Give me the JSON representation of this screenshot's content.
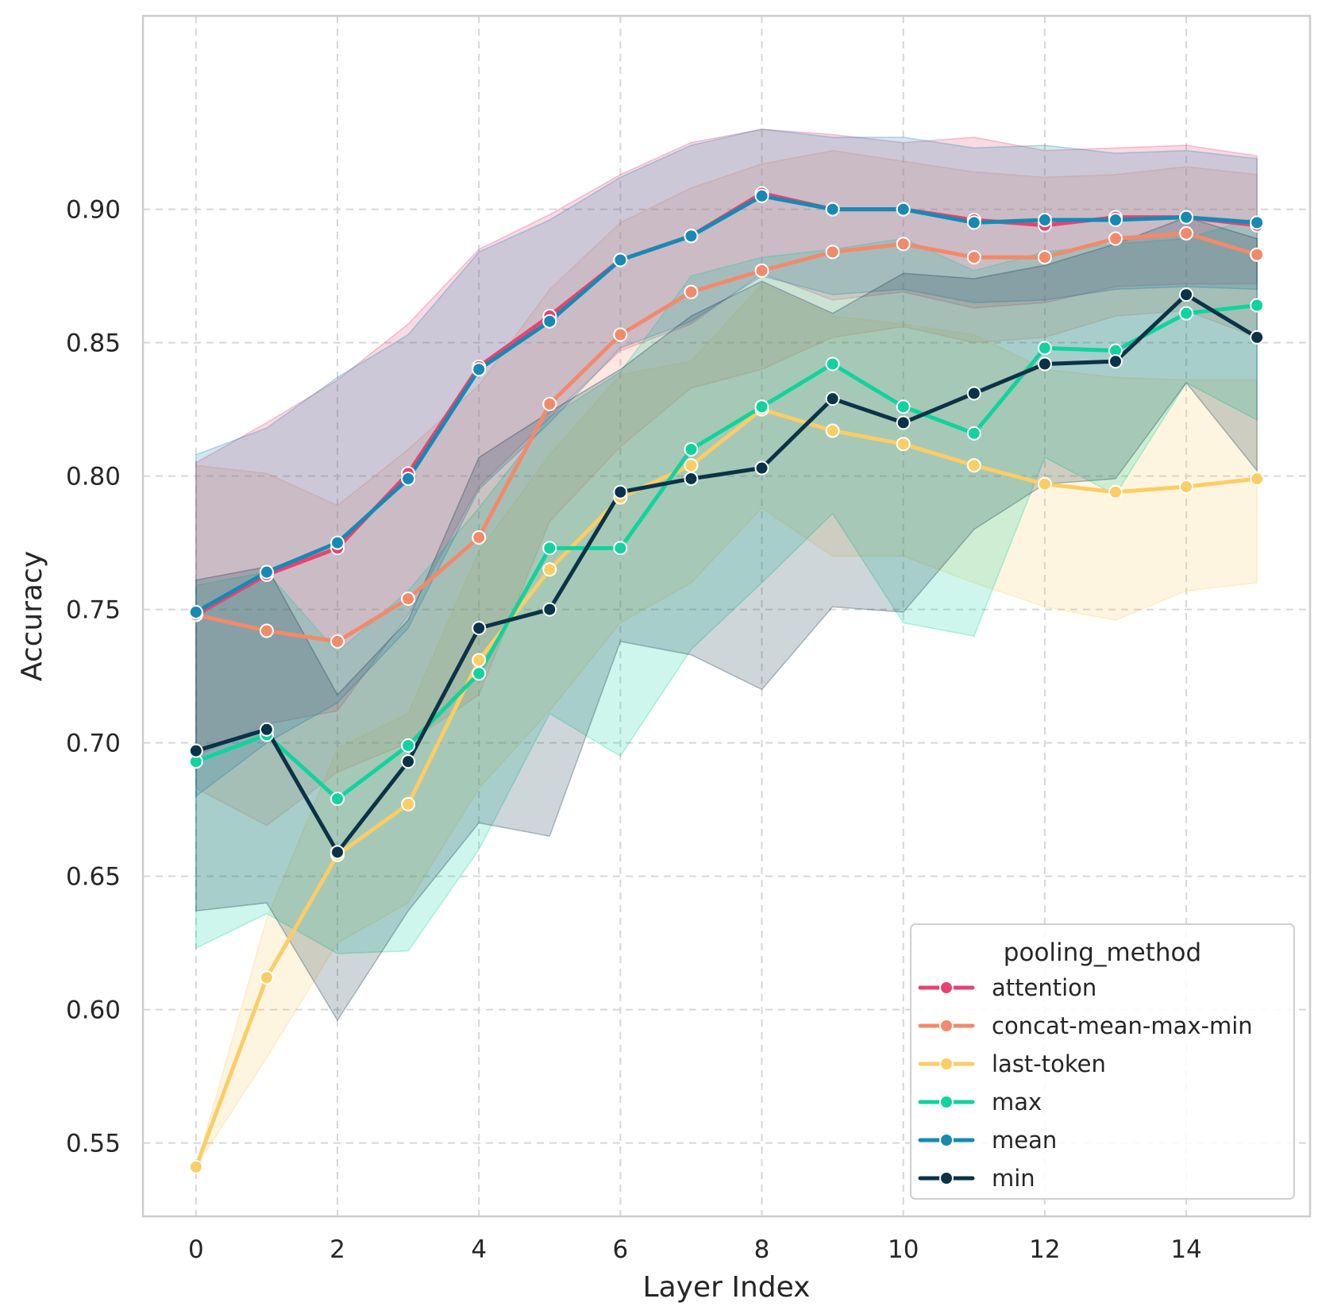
{
  "chart_data": {
    "type": "line",
    "title": "",
    "xlabel": "Layer Index",
    "ylabel": "Accuracy",
    "xlim": [
      -0.75,
      15.75
    ],
    "ylim": [
      0.5225,
      0.9725
    ],
    "xticks": [
      0,
      2,
      4,
      6,
      8,
      10,
      12,
      14
    ],
    "xtick_labels": [
      "0",
      "2",
      "4",
      "6",
      "8",
      "10",
      "12",
      "14"
    ],
    "yticks": [
      0.55,
      0.6,
      0.65,
      0.7,
      0.75,
      0.8,
      0.85,
      0.9
    ],
    "ytick_labels": [
      "0.55",
      "0.60",
      "0.65",
      "0.70",
      "0.75",
      "0.80",
      "0.85",
      "0.90"
    ],
    "grid": true,
    "legend": {
      "title": "pooling_method",
      "placement": "lower-right"
    },
    "x": [
      0,
      1,
      2,
      3,
      4,
      5,
      6,
      7,
      8,
      9,
      10,
      11,
      12,
      13,
      14,
      15
    ],
    "series": [
      {
        "name": "attention",
        "color": "#e8436f",
        "values": [
          0.748,
          0.763,
          0.773,
          0.801,
          0.841,
          0.86,
          0.881,
          0.89,
          0.906,
          0.9,
          0.9,
          0.896,
          0.894,
          0.897,
          0.897,
          0.894
        ],
        "lower": [
          0.695,
          0.707,
          0.712,
          0.748,
          0.796,
          0.822,
          0.847,
          0.857,
          0.876,
          0.866,
          0.869,
          0.863,
          0.865,
          0.871,
          0.872,
          0.872
        ],
        "upper": [
          0.805,
          0.82,
          0.836,
          0.857,
          0.885,
          0.898,
          0.913,
          0.925,
          0.93,
          0.928,
          0.925,
          0.927,
          0.922,
          0.923,
          0.924,
          0.92
        ]
      },
      {
        "name": "concat-mean-max-min",
        "color": "#f28a6a",
        "values": [
          0.748,
          0.742,
          0.738,
          0.754,
          0.777,
          0.827,
          0.853,
          0.869,
          0.877,
          0.884,
          0.887,
          0.882,
          0.882,
          0.889,
          0.891,
          0.883
        ],
        "lower": [
          0.683,
          0.669,
          0.689,
          0.7,
          0.718,
          0.783,
          0.811,
          0.833,
          0.84,
          0.852,
          0.856,
          0.85,
          0.852,
          0.86,
          0.862,
          0.852
        ],
        "upper": [
          0.804,
          0.801,
          0.789,
          0.81,
          0.834,
          0.87,
          0.895,
          0.908,
          0.917,
          0.922,
          0.918,
          0.914,
          0.912,
          0.913,
          0.916,
          0.913
        ]
      },
      {
        "name": "last-token",
        "color": "#fbcd65",
        "values": [
          0.541,
          0.612,
          0.658,
          0.677,
          0.731,
          0.765,
          0.792,
          0.804,
          0.825,
          0.817,
          0.812,
          0.804,
          0.797,
          0.794,
          0.796,
          0.799
        ],
        "lower": [
          0.541,
          0.582,
          0.625,
          0.64,
          0.683,
          0.712,
          0.745,
          0.76,
          0.788,
          0.77,
          0.77,
          0.76,
          0.751,
          0.746,
          0.757,
          0.76
        ],
        "upper": [
          0.541,
          0.634,
          0.698,
          0.711,
          0.772,
          0.808,
          0.838,
          0.843,
          0.872,
          0.86,
          0.857,
          0.853,
          0.84,
          0.837,
          0.836,
          0.836
        ]
      },
      {
        "name": "max",
        "color": "#11d39e",
        "values": [
          0.693,
          0.703,
          0.679,
          0.699,
          0.726,
          0.773,
          0.773,
          0.81,
          0.826,
          0.842,
          0.826,
          0.816,
          0.848,
          0.847,
          0.861,
          0.864
        ],
        "lower": [
          0.623,
          0.636,
          0.621,
          0.622,
          0.66,
          0.711,
          0.695,
          0.735,
          0.76,
          0.786,
          0.745,
          0.74,
          0.807,
          0.793,
          0.835,
          0.821
        ],
        "upper": [
          0.759,
          0.764,
          0.734,
          0.757,
          0.788,
          0.822,
          0.839,
          0.875,
          0.882,
          0.885,
          0.889,
          0.877,
          0.884,
          0.887,
          0.889,
          0.897
        ]
      },
      {
        "name": "mean",
        "color": "#1789b5",
        "values": [
          0.749,
          0.764,
          0.775,
          0.799,
          0.84,
          0.858,
          0.881,
          0.89,
          0.905,
          0.9,
          0.9,
          0.895,
          0.896,
          0.896,
          0.897,
          0.895
        ],
        "lower": [
          0.68,
          0.7,
          0.715,
          0.743,
          0.795,
          0.82,
          0.848,
          0.858,
          0.875,
          0.868,
          0.87,
          0.865,
          0.866,
          0.87,
          0.871,
          0.87
        ],
        "upper": [
          0.808,
          0.818,
          0.837,
          0.853,
          0.884,
          0.896,
          0.912,
          0.924,
          0.93,
          0.927,
          0.927,
          0.923,
          0.924,
          0.921,
          0.922,
          0.919
        ]
      },
      {
        "name": "min",
        "color": "#0b3348",
        "values": [
          0.697,
          0.705,
          0.659,
          0.693,
          0.743,
          0.75,
          0.794,
          0.799,
          0.803,
          0.829,
          0.82,
          0.831,
          0.842,
          0.843,
          0.868,
          0.852
        ],
        "lower": [
          0.637,
          0.64,
          0.596,
          0.637,
          0.67,
          0.665,
          0.738,
          0.733,
          0.72,
          0.751,
          0.749,
          0.78,
          0.797,
          0.799,
          0.835,
          0.802
        ],
        "upper": [
          0.761,
          0.766,
          0.718,
          0.746,
          0.807,
          0.824,
          0.84,
          0.86,
          0.873,
          0.861,
          0.876,
          0.874,
          0.879,
          0.887,
          0.897,
          0.889
        ]
      }
    ]
  }
}
